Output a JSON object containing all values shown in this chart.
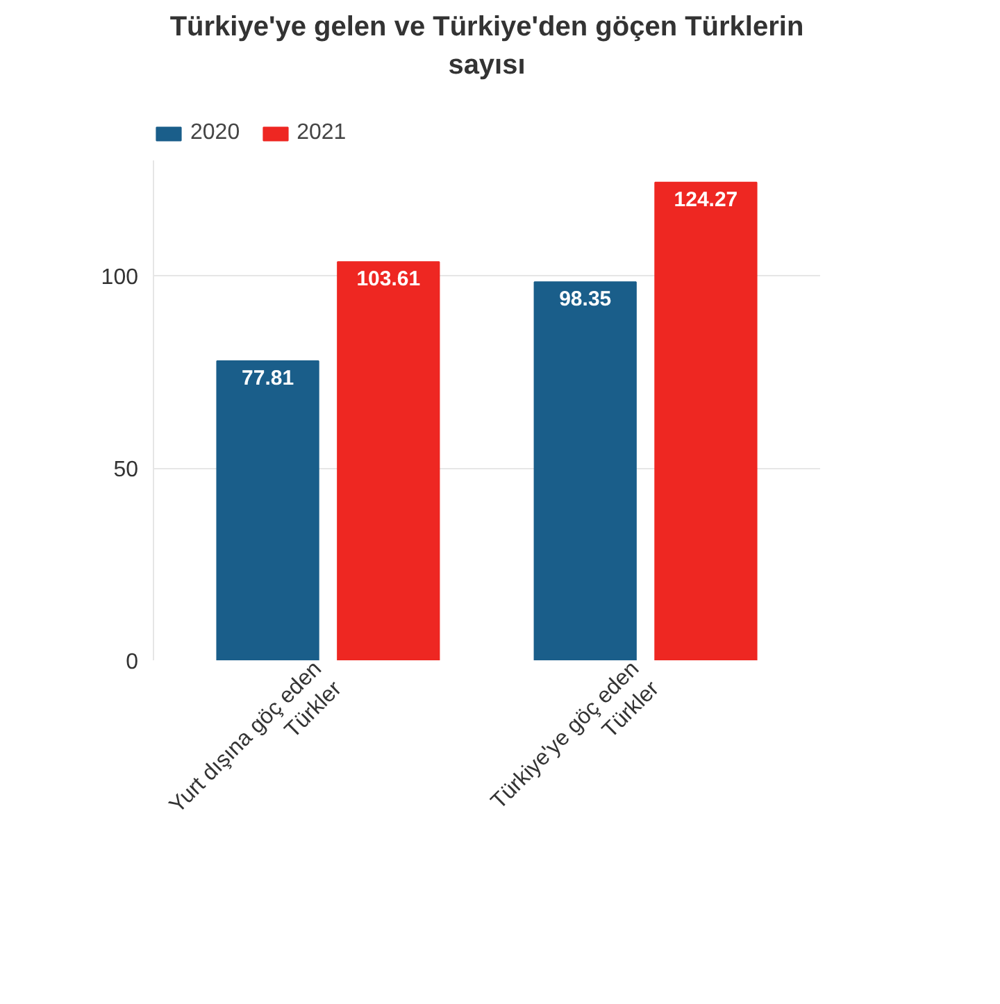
{
  "chart_data": {
    "type": "bar",
    "title": "Türkiye'ye gelen ve Türkiye'den göçen Türklerin sayısı",
    "categories": [
      "Yurt dışına göç eden Türkler",
      "Türkiye'ye göç eden Türkler"
    ],
    "series": [
      {
        "name": "2020",
        "color": "#1a5e8a",
        "values": [
          77.81,
          98.35
        ]
      },
      {
        "name": "2021",
        "color": "#ee2722",
        "values": [
          103.61,
          124.27
        ]
      }
    ],
    "ylim": [
      0,
      130
    ],
    "yticks": [
      0,
      50,
      100
    ],
    "grid": "y",
    "legend": "top left",
    "data_labels": true
  }
}
